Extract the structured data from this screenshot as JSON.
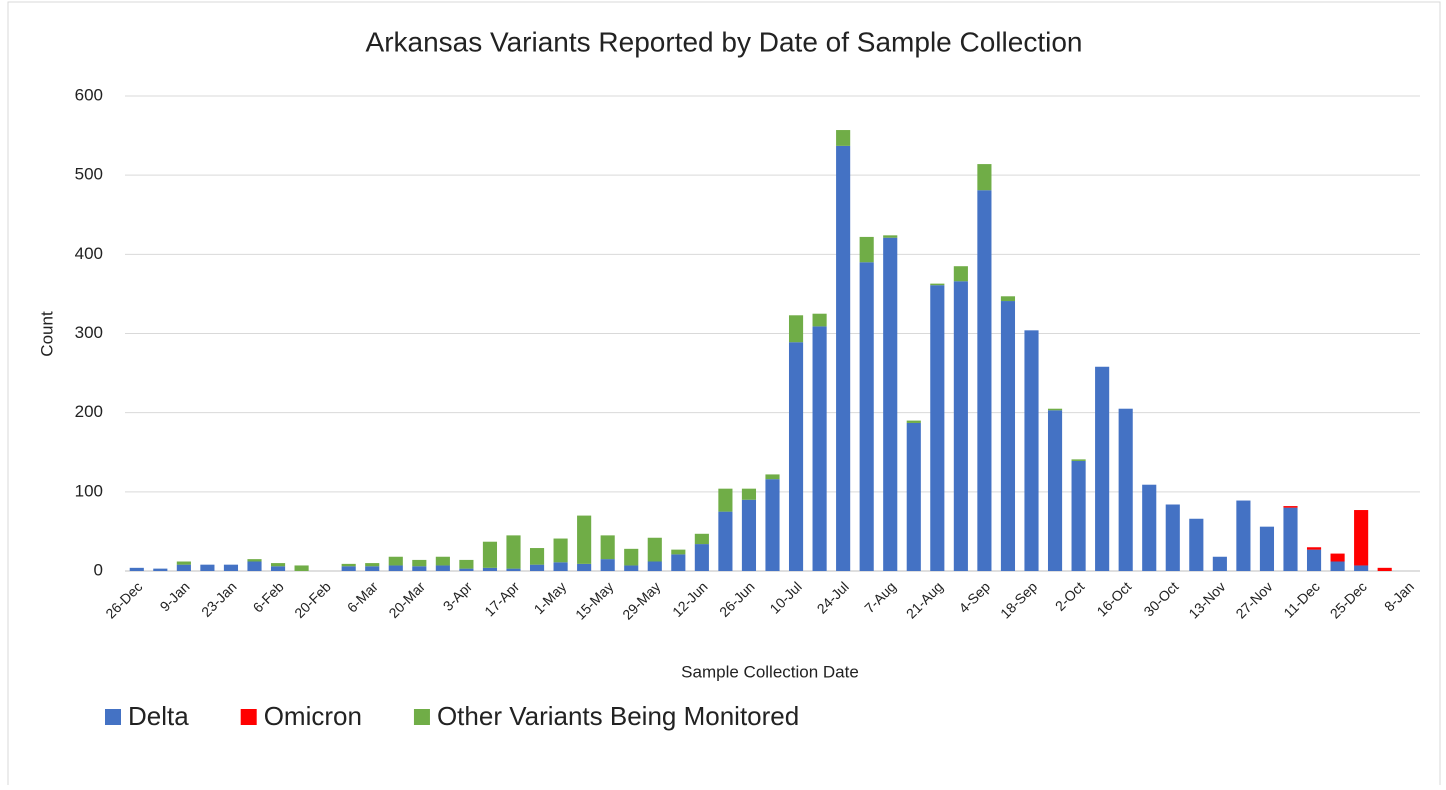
{
  "chart_data": {
    "type": "stacked_bar",
    "title": "Arkansas Variants Reported by Date of Sample Collection",
    "x_label": "Sample Collection Date",
    "y_label": "Count",
    "categories": [
      "26-Dec",
      null,
      "9-Jan",
      null,
      "23-Jan",
      null,
      "6-Feb",
      null,
      "20-Feb",
      null,
      "6-Mar",
      null,
      "20-Mar",
      null,
      "3-Apr",
      null,
      "17-Apr",
      null,
      "1-May",
      null,
      "15-May",
      null,
      "29-May",
      null,
      "12-Jun",
      null,
      "26-Jun",
      null,
      "10-Jul",
      null,
      "24-Jul",
      null,
      "7-Aug",
      null,
      "21-Aug",
      null,
      "4-Sep",
      null,
      "18-Sep",
      null,
      "2-Oct",
      null,
      "16-Oct",
      null,
      "30-Oct",
      null,
      "13-Nov",
      null,
      "27-Nov",
      null,
      "11-Dec",
      null,
      "25-Dec",
      null,
      "8-Jan"
    ],
    "series": [
      {
        "name": "Delta",
        "color": "#4472c4",
        "values": [
          4,
          3,
          8,
          8,
          8,
          12,
          6,
          0,
          0,
          6,
          6,
          7,
          6,
          7,
          3,
          4,
          3,
          8,
          11,
          9,
          15,
          7,
          12,
          21,
          34,
          75,
          90,
          116,
          289,
          309,
          537,
          390,
          421,
          187,
          361,
          366,
          481,
          341,
          304,
          203,
          139,
          258,
          205,
          109,
          84,
          66,
          18,
          89,
          56,
          80,
          27,
          12,
          7,
          0,
          0
        ]
      },
      {
        "name": "Omicron",
        "color": "#ff0000",
        "values": [
          0,
          0,
          0,
          0,
          0,
          0,
          0,
          0,
          0,
          0,
          0,
          0,
          0,
          0,
          0,
          0,
          0,
          0,
          0,
          0,
          0,
          0,
          0,
          0,
          0,
          0,
          0,
          0,
          0,
          0,
          0,
          0,
          0,
          0,
          0,
          0,
          0,
          0,
          0,
          0,
          0,
          0,
          0,
          0,
          0,
          0,
          0,
          0,
          0,
          2,
          3,
          10,
          70,
          4,
          0
        ]
      },
      {
        "name": "Other Variants Being Monitored",
        "color": "#70ad47",
        "values": [
          0,
          0,
          4,
          0,
          0,
          3,
          4,
          7,
          0,
          3,
          4,
          11,
          8,
          11,
          11,
          33,
          42,
          21,
          30,
          61,
          30,
          21,
          30,
          6,
          13,
          29,
          14,
          6,
          34,
          16,
          20,
          32,
          3,
          3,
          2,
          19,
          33,
          6,
          0,
          2,
          2,
          0,
          0,
          0,
          0,
          0,
          0,
          0,
          0,
          0,
          0,
          0,
          0,
          0,
          0
        ]
      }
    ],
    "ylim": [
      0,
      600
    ],
    "yticks": [
      0,
      100,
      200,
      300,
      400,
      500,
      600
    ],
    "grid": true,
    "legend": "bottom-left"
  }
}
